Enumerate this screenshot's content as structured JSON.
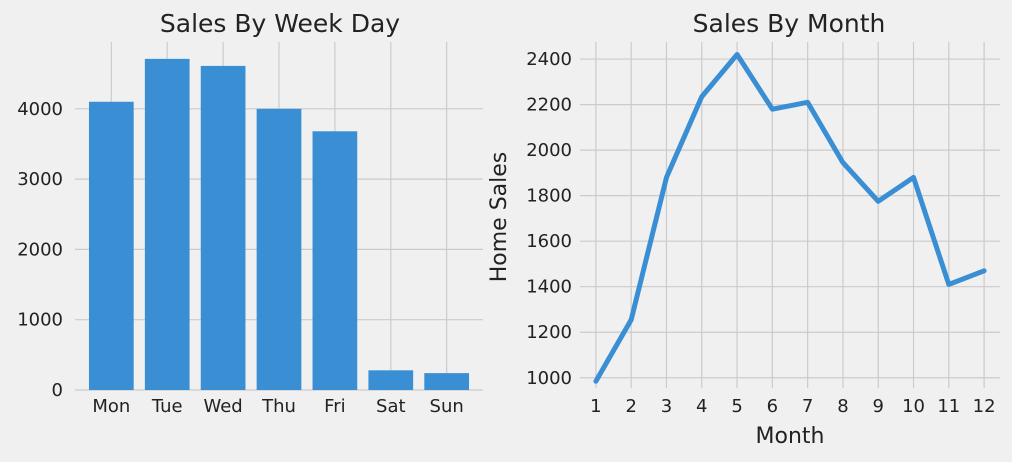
{
  "chart_data": [
    {
      "type": "bar",
      "title": "Sales By Week Day",
      "xlabel": "",
      "ylabel": "",
      "categories": [
        "Mon",
        "Tue",
        "Wed",
        "Thu",
        "Fri",
        "Sat",
        "Sun"
      ],
      "values": [
        4100,
        4710,
        4610,
        4000,
        3680,
        280,
        240
      ],
      "ylim": [
        0,
        4950
      ],
      "yticks": [
        0,
        1000,
        2000,
        3000,
        4000
      ],
      "color": "#3a8fd4",
      "grid": true
    },
    {
      "type": "line",
      "title": "Sales By Month",
      "xlabel": "Month",
      "ylabel": "Home Sales",
      "x": [
        1,
        2,
        3,
        4,
        5,
        6,
        7,
        8,
        9,
        10,
        11,
        12
      ],
      "values": [
        985,
        1255,
        1880,
        2235,
        2420,
        2180,
        2210,
        1945,
        1775,
        1880,
        1410,
        1470
      ],
      "xlim": [
        0.55,
        12.45
      ],
      "ylim": [
        955,
        2475
      ],
      "yticks": [
        1000,
        1200,
        1400,
        1600,
        1800,
        2000,
        2200,
        2400
      ],
      "color": "#3a8fd4",
      "grid": true
    }
  ]
}
